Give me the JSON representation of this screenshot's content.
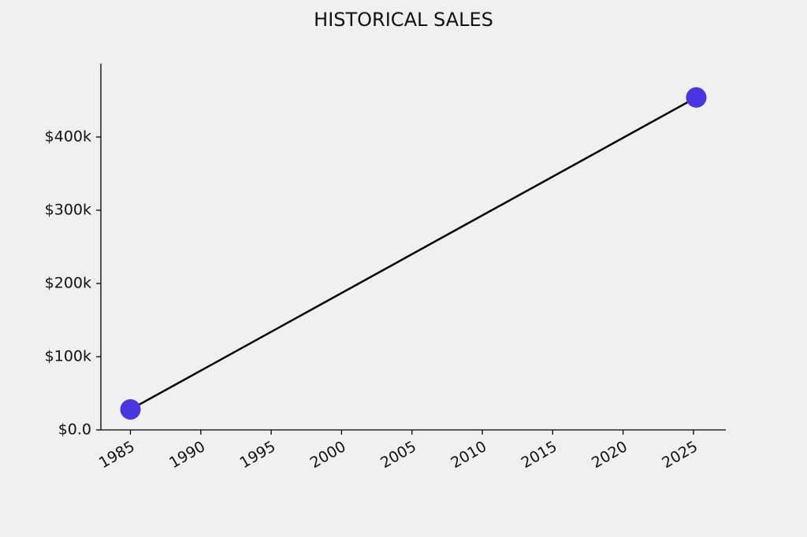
{
  "chart_data": {
    "type": "line",
    "title": "HISTORICAL SALES",
    "x": [
      1985,
      2025.2
    ],
    "values": [
      28000,
      454000
    ],
    "color": "#4b35e0",
    "line_color": "#000000",
    "xlim": [
      1982.9,
      2027.3
    ],
    "xticks": [
      1985,
      1990,
      1995,
      2000,
      2005,
      2010,
      2015,
      2020,
      2025
    ],
    "ylim": [
      0,
      500000
    ],
    "yticks": [
      {
        "value": 0,
        "label": "$0.0"
      },
      {
        "value": 100000,
        "label": "$100k"
      },
      {
        "value": 200000,
        "label": "$200k"
      },
      {
        "value": 300000,
        "label": "$300k"
      },
      {
        "value": 400000,
        "label": "$400k"
      }
    ],
    "grid": false
  }
}
